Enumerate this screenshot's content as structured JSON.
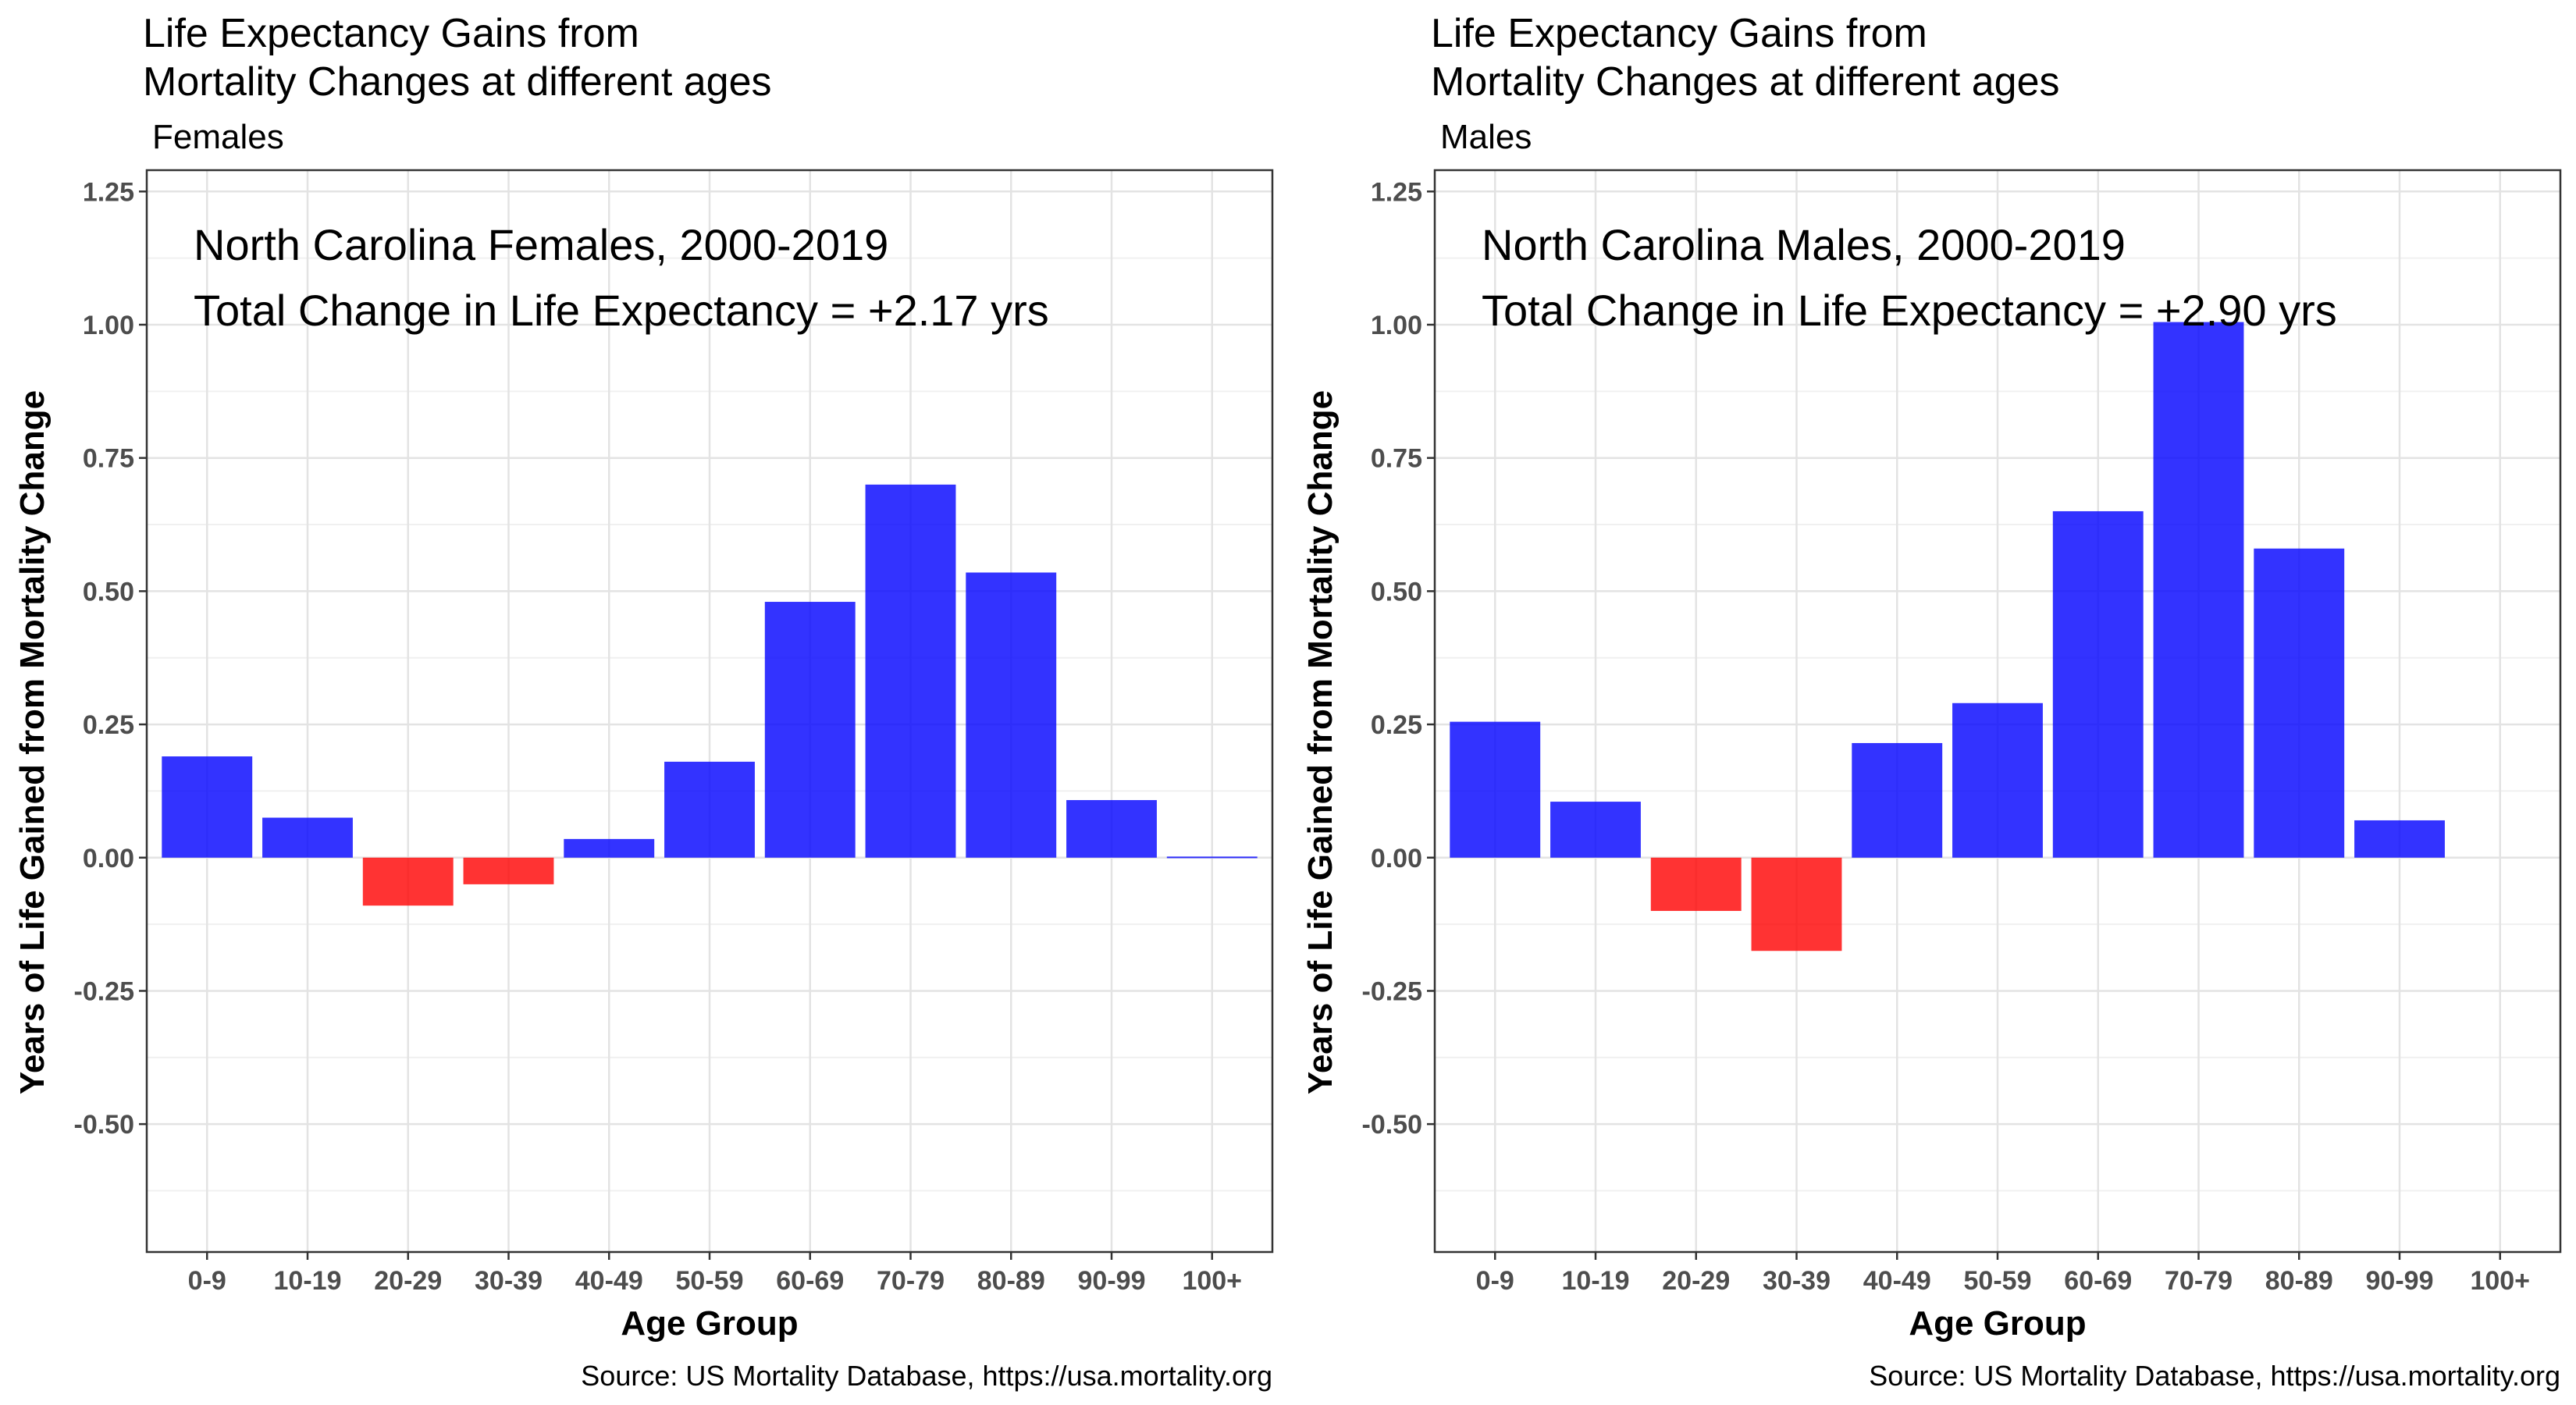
{
  "chart_data": [
    {
      "type": "bar",
      "title_line1": "Life Expectancy Gains from",
      "title_line2": "Mortality Changes at different ages",
      "subtitle": "Females",
      "annotation_line1": "North Carolina Females, 2000-2019",
      "annotation_line2": "Total Change in Life Expectancy = +2.17 yrs",
      "xlabel": "Age Group",
      "ylabel": "Years of Life Gained from Mortality Change",
      "caption": "Source: US Mortality Database, https://usa.mortality.org",
      "categories": [
        "0-9",
        "10-19",
        "20-29",
        "30-39",
        "40-49",
        "50-59",
        "60-69",
        "70-79",
        "80-89",
        "90-99",
        "100+"
      ],
      "values": [
        0.19,
        0.075,
        -0.09,
        -0.05,
        0.035,
        0.18,
        0.48,
        0.7,
        0.535,
        0.108,
        0.002
      ],
      "ylim": [
        -0.74,
        1.29
      ],
      "yticks": [
        -0.5,
        -0.25,
        0,
        0.25,
        0.5,
        0.75,
        1.0,
        1.25
      ],
      "ytick_labels": [
        "-0.50",
        "-0.25",
        "0.00",
        "0.25",
        "0.50",
        "0.75",
        "1.00",
        "1.25"
      ],
      "grid": true,
      "colors": {
        "positive": "#0000ff",
        "negative": "#ff0000"
      }
    },
    {
      "type": "bar",
      "title_line1": "Life Expectancy Gains from",
      "title_line2": "Mortality Changes at different ages",
      "subtitle": "Males",
      "annotation_line1": "North Carolina Males, 2000-2019",
      "annotation_line2": "Total Change in Life Expectancy = +2.90 yrs",
      "xlabel": "Age Group",
      "ylabel": "Years of Life Gained from Mortality Change",
      "caption": "Source: US Mortality Database, https://usa.mortality.org",
      "categories": [
        "0-9",
        "10-19",
        "20-29",
        "30-39",
        "40-49",
        "50-59",
        "60-69",
        "70-79",
        "80-89",
        "90-99",
        "100+"
      ],
      "values": [
        0.255,
        0.105,
        -0.1,
        -0.175,
        0.215,
        0.29,
        0.65,
        1.005,
        0.58,
        0.07,
        0
      ],
      "ylim": [
        -0.74,
        1.29
      ],
      "yticks": [
        -0.5,
        -0.25,
        0,
        0.25,
        0.5,
        0.75,
        1.0,
        1.25
      ],
      "ytick_labels": [
        "-0.50",
        "-0.25",
        "0.00",
        "0.25",
        "0.50",
        "0.75",
        "1.00",
        "1.25"
      ],
      "grid": true,
      "colors": {
        "positive": "#0000ff",
        "negative": "#ff0000"
      }
    }
  ]
}
